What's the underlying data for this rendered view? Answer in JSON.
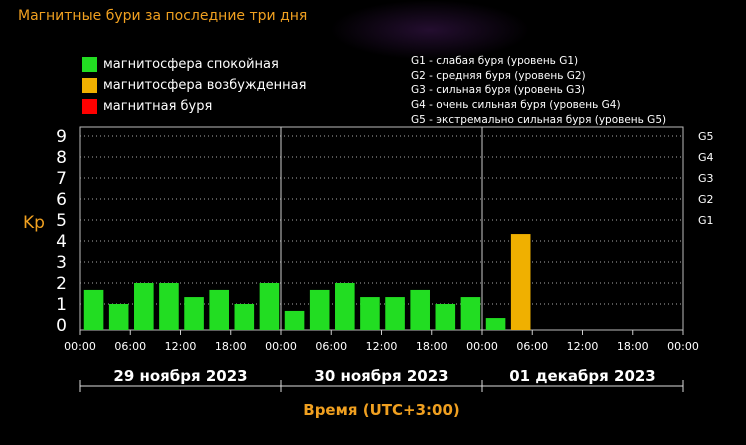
{
  "title": "Магнитные бури за последние три дня",
  "legend": [
    {
      "label": "магнитосфера спокойная",
      "color": "#22dd22"
    },
    {
      "label": "магнитосфера возбужденная",
      "color": "#f0b000"
    },
    {
      "label": "магнитная буря",
      "color": "#ff0000"
    }
  ],
  "g_legend": [
    "G1 - слабая буря (уровень G1)",
    "G2 - средняя буря (уровень G2)",
    "G3 - сильная буря (уровень G3)",
    "G4 - очень сильная буря (уровень G4)",
    "G5 - экстремально сильная буря (уровень G5)"
  ],
  "chart_data": {
    "type": "bar",
    "ylabel": "Kp",
    "xlabel": "Время (UTC+3:00)",
    "ylim": [
      0,
      9
    ],
    "yticks": [
      "0",
      "1",
      "2",
      "3",
      "4",
      "5",
      "6",
      "7",
      "8",
      "9"
    ],
    "g_levels": [
      {
        "label": "G1",
        "kp": 5
      },
      {
        "label": "G2",
        "kp": 6
      },
      {
        "label": "G3",
        "kp": 7
      },
      {
        "label": "G4",
        "kp": 8
      },
      {
        "label": "G5",
        "kp": 9
      }
    ],
    "xticks": [
      "00:00",
      "06:00",
      "12:00",
      "18:00",
      "00:00",
      "06:00",
      "12:00",
      "18:00",
      "00:00",
      "06:00",
      "12:00",
      "18:00",
      "00:00"
    ],
    "days": [
      "29 ноября 2023",
      "30 ноября 2023",
      "01 декабря 2023"
    ],
    "bars_per_day": 8,
    "values": [
      1.67,
      1.0,
      2.0,
      2.0,
      1.33,
      1.67,
      1.0,
      2.0,
      0.67,
      1.67,
      2.0,
      1.33,
      1.33,
      1.67,
      1.0,
      1.33,
      0.33,
      4.33
    ],
    "colors": [
      "#22dd22",
      "#22dd22",
      "#22dd22",
      "#22dd22",
      "#22dd22",
      "#22dd22",
      "#22dd22",
      "#22dd22",
      "#22dd22",
      "#22dd22",
      "#22dd22",
      "#22dd22",
      "#22dd22",
      "#22dd22",
      "#22dd22",
      "#22dd22",
      "#22dd22",
      "#f0b000"
    ],
    "grid": true
  }
}
